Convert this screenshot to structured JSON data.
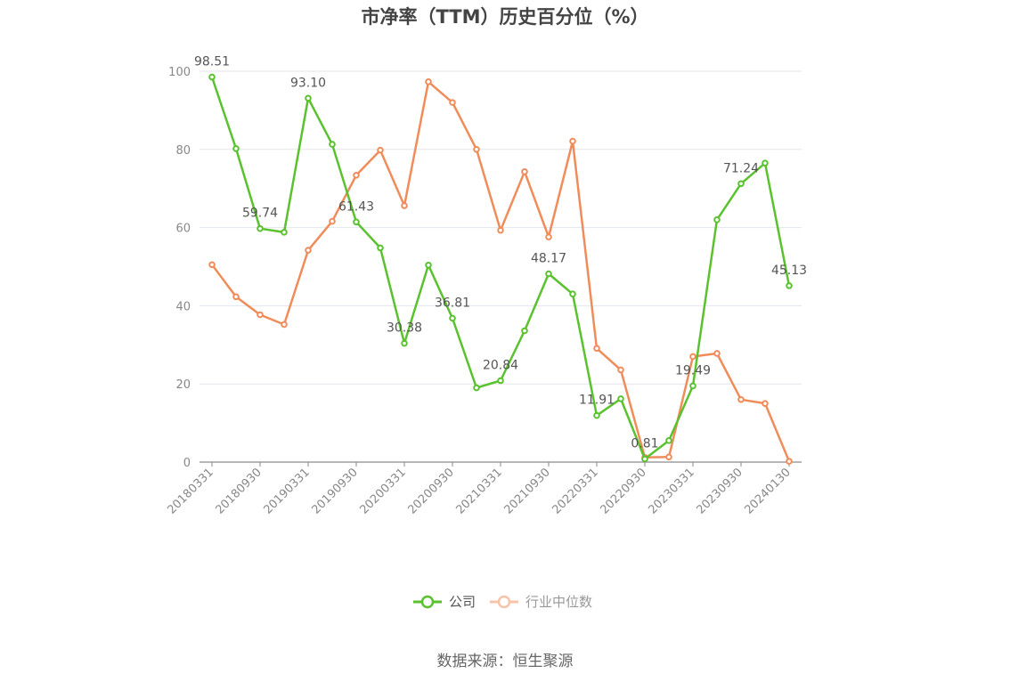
{
  "chart_data": {
    "type": "line",
    "title": "市净率（TTM）历史百分位（%）",
    "xlabel": "",
    "ylabel": "",
    "ylim": [
      0,
      100
    ],
    "yticks": [
      0,
      20,
      40,
      60,
      80,
      100
    ],
    "grid": true,
    "legend_position": "bottom",
    "x": [
      "20180331",
      "20180630",
      "20180930",
      "20181231",
      "20190331",
      "20190630",
      "20190930",
      "20191231",
      "20200331",
      "20200630",
      "20200930",
      "20201231",
      "20210331",
      "20210630",
      "20210930",
      "20211231",
      "20220331",
      "20220630",
      "20220930",
      "20221231",
      "20230331",
      "20230630",
      "20230930",
      "20231231",
      "20240130"
    ],
    "xtick_labels": [
      "20180331",
      "20180930",
      "20190331",
      "20190930",
      "20200331",
      "20200930",
      "20210331",
      "20210930",
      "20220331",
      "20220930",
      "20230331",
      "20230930",
      "20240130"
    ],
    "series": [
      {
        "name": "公司",
        "color": "#5ac12f",
        "values": [
          98.51,
          80.2,
          59.74,
          58.8,
          93.1,
          81.3,
          61.43,
          54.8,
          30.38,
          50.4,
          36.81,
          19.0,
          20.84,
          33.6,
          48.17,
          43.0,
          11.91,
          16.2,
          0.81,
          5.5,
          19.49,
          62.0,
          71.24,
          76.5,
          45.13
        ],
        "labels": {
          "0": "98.51",
          "2": "59.74",
          "4": "93.10",
          "6": "61.43",
          "8": "30.38",
          "10": "36.81",
          "12": "20.84",
          "14": "48.17",
          "16": "11.91",
          "18": "0.81",
          "20": "19.49",
          "22": "71.24",
          "24": "45.13"
        }
      },
      {
        "name": "行业中位数",
        "color": "#f08c5a",
        "values": [
          50.5,
          42.3,
          37.7,
          35.2,
          54.2,
          61.6,
          73.4,
          79.8,
          65.6,
          97.3,
          92.0,
          80.0,
          59.3,
          74.3,
          57.6,
          82.1,
          29.1,
          23.6,
          1.2,
          1.3,
          27.0,
          27.8,
          16.0,
          15.0,
          0.2
        ]
      }
    ],
    "source": "数据来源：恒生聚源"
  }
}
